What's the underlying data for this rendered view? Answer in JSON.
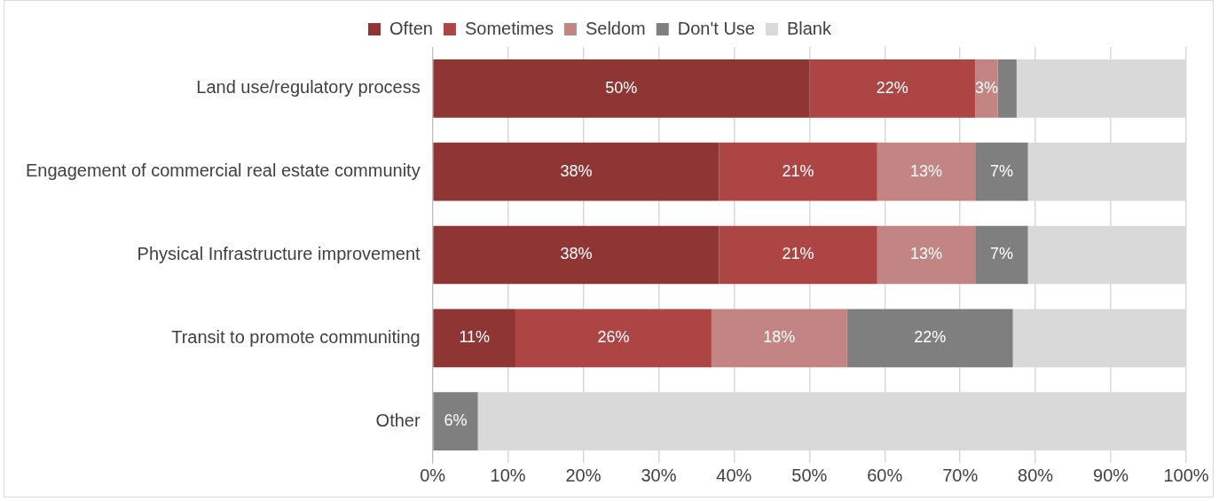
{
  "chart_data": {
    "type": "bar",
    "orientation": "horizontal",
    "stacked": true,
    "categories": [
      "Land use/regulatory process",
      "Engagement of commercial real estate community",
      "Physical Infrastructure improvement",
      "Transit to promote communiting",
      "Other"
    ],
    "series": [
      {
        "name": "Often",
        "color": "#8f3635",
        "values": [
          50,
          38,
          38,
          11,
          0
        ],
        "value_labels": [
          "50%",
          "38%",
          "38%",
          "11%",
          null
        ]
      },
      {
        "name": "Sometimes",
        "color": "#ad4544",
        "values": [
          22,
          21,
          21,
          26,
          0
        ],
        "value_labels": [
          "22%",
          "21%",
          "21%",
          "26%",
          null
        ]
      },
      {
        "name": "Seldom",
        "color": "#c38584",
        "values": [
          3,
          13,
          13,
          18,
          0
        ],
        "value_labels": [
          "3%",
          "13%",
          "13%",
          "18%",
          null
        ]
      },
      {
        "name": "Don't Use",
        "color": "#7f7f7f",
        "values": [
          2.5,
          7,
          7,
          22,
          6
        ],
        "value_labels": [
          null,
          "7%",
          "7%",
          "22%",
          "6%"
        ]
      },
      {
        "name": "Blank",
        "color": "#d9d9d9",
        "values": [
          22.5,
          21,
          21,
          23,
          94
        ],
        "value_labels": [
          null,
          null,
          null,
          null,
          null
        ]
      }
    ],
    "xlim": [
      0,
      100
    ],
    "xticks": [
      {
        "value": 0,
        "label": "0%"
      },
      {
        "value": 10,
        "label": "10%"
      },
      {
        "value": 20,
        "label": "20%"
      },
      {
        "value": 30,
        "label": "30%"
      },
      {
        "value": 40,
        "label": "40%"
      },
      {
        "value": 50,
        "label": "50%"
      },
      {
        "value": 60,
        "label": "60%"
      },
      {
        "value": 70,
        "label": "70%"
      },
      {
        "value": 80,
        "label": "80%"
      },
      {
        "value": 90,
        "label": "90%"
      },
      {
        "value": 100,
        "label": "100%"
      }
    ],
    "grid": "x",
    "legend": "top"
  }
}
